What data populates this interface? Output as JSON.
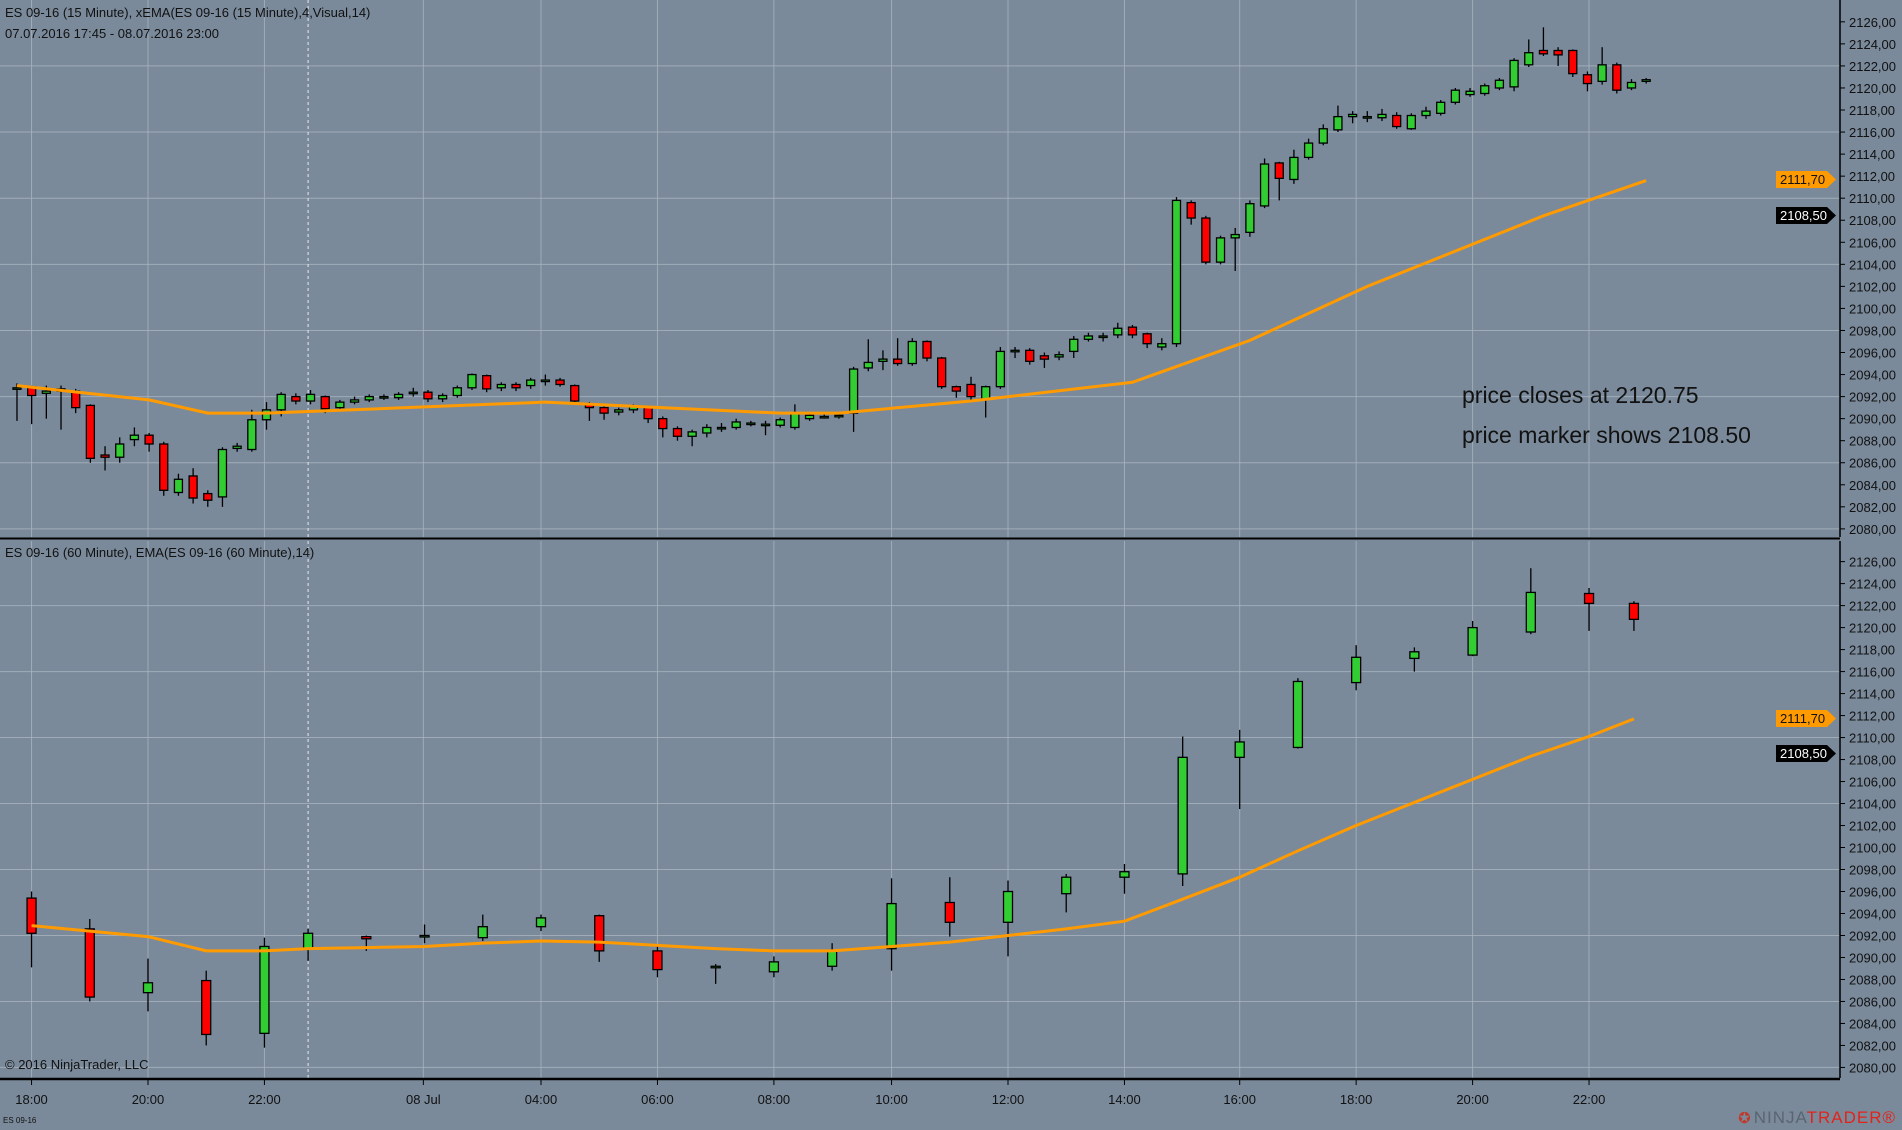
{
  "top_pane": {
    "title": "ES 09-16 (15 Minute), xEMA(ES 09-16 (15 Minute),4,Visual,14)",
    "range": "07.07.2016 17:45 - 08.07.2016 23:00",
    "ema_marker": "2111,70",
    "price_marker": "2108,50"
  },
  "bottom_pane": {
    "title": "ES 09-16 (60 Minute), EMA(ES 09-16 (60 Minute),14)",
    "ema_marker": "2111,70",
    "price_marker": "2108,50"
  },
  "annotations": {
    "line1": "price closes at 2120.75",
    "line2": "price marker shows 2108.50"
  },
  "footer": {
    "copyright": "© 2016 NinjaTrader, LLC",
    "instrument": "ES 09-16",
    "logo_ninja": "NINJA",
    "logo_trader": "TRADER®"
  },
  "colors": {
    "background": "#7a8a9b",
    "up": "#32cd32",
    "down": "#ff0000",
    "ema": "#ff9a00",
    "grid": "#a9b4bf"
  },
  "chart_data": [
    {
      "type": "candlestick",
      "title": "ES 09-16 (15 Minute)",
      "ylim": [
        2079,
        2127
      ],
      "yticks": [
        "2126,00",
        "2124,00",
        "2122,00",
        "2120,00",
        "2118,00",
        "2116,00",
        "2114,00",
        "2112,00",
        "2110,00",
        "2108,00",
        "2106,00",
        "2104,00",
        "2102,00",
        "2100,00",
        "2098,00",
        "2096,00",
        "2094,00",
        "2092,00",
        "2090,00",
        "2088,00",
        "2086,00",
        "2084,00",
        "2082,00",
        "2080,00"
      ],
      "ohlc": [
        [
          2092.8,
          2093.2,
          2089.8,
          2092.8
        ],
        [
          2092.9,
          2093.0,
          2089.5,
          2092.1
        ],
        [
          2092.3,
          2093.0,
          2090.0,
          2092.5
        ],
        [
          2092.7,
          2093.0,
          2089.0,
          2092.5
        ],
        [
          2092.5,
          2092.7,
          2090.5,
          2091.0
        ],
        [
          2091.2,
          2091.3,
          2086.0,
          2086.4
        ],
        [
          2086.7,
          2087.5,
          2085.3,
          2086.5
        ],
        [
          2086.5,
          2088.3,
          2086.0,
          2087.7
        ],
        [
          2088.1,
          2089.2,
          2087.5,
          2088.5
        ],
        [
          2088.5,
          2088.7,
          2087.0,
          2087.7
        ],
        [
          2087.7,
          2087.9,
          2083.0,
          2083.5
        ],
        [
          2083.3,
          2085.0,
          2083.0,
          2084.5
        ],
        [
          2084.8,
          2085.5,
          2082.3,
          2082.8
        ],
        [
          2083.2,
          2083.5,
          2082.0,
          2082.6
        ],
        [
          2082.9,
          2087.4,
          2082.0,
          2087.2
        ],
        [
          2087.3,
          2087.8,
          2087.0,
          2087.5
        ],
        [
          2087.2,
          2090.8,
          2087.0,
          2089.9
        ],
        [
          2089.9,
          2091.5,
          2089.0,
          2090.8
        ],
        [
          2090.8,
          2092.4,
          2090.2,
          2092.2
        ],
        [
          2092.0,
          2092.3,
          2091.3,
          2091.6
        ],
        [
          2091.6,
          2092.6,
          2091.3,
          2092.2
        ],
        [
          2092.0,
          2092.1,
          2090.5,
          2090.9
        ],
        [
          2091.0,
          2091.7,
          2090.7,
          2091.5
        ],
        [
          2091.5,
          2092.0,
          2091.3,
          2091.7
        ],
        [
          2091.7,
          2092.2,
          2091.5,
          2092.0
        ],
        [
          2091.9,
          2092.2,
          2091.7,
          2092.0
        ],
        [
          2091.9,
          2092.4,
          2091.7,
          2092.2
        ],
        [
          2092.3,
          2092.8,
          2092.0,
          2092.4
        ],
        [
          2092.4,
          2092.6,
          2091.5,
          2091.8
        ],
        [
          2091.8,
          2092.3,
          2091.5,
          2092.1
        ],
        [
          2092.1,
          2093.0,
          2091.9,
          2092.8
        ],
        [
          2092.8,
          2094.1,
          2092.6,
          2094.0
        ],
        [
          2093.9,
          2094.0,
          2092.4,
          2092.7
        ],
        [
          2092.8,
          2093.3,
          2092.5,
          2093.1
        ],
        [
          2093.1,
          2093.3,
          2092.5,
          2092.8
        ],
        [
          2093.0,
          2093.7,
          2092.7,
          2093.5
        ],
        [
          2093.4,
          2094.0,
          2093.0,
          2093.5
        ],
        [
          2093.5,
          2093.7,
          2092.9,
          2093.1
        ],
        [
          2093.0,
          2093.1,
          2091.4,
          2091.6
        ],
        [
          2091.3,
          2091.5,
          2089.8,
          2091.0
        ],
        [
          2091.0,
          2091.1,
          2089.9,
          2090.5
        ],
        [
          2090.6,
          2091.0,
          2090.3,
          2090.8
        ],
        [
          2090.8,
          2091.3,
          2090.5,
          2091.1
        ],
        [
          2091.0,
          2091.2,
          2089.6,
          2090.0
        ],
        [
          2090.0,
          2090.2,
          2088.3,
          2089.1
        ],
        [
          2089.1,
          2089.3,
          2088.0,
          2088.4
        ],
        [
          2088.4,
          2089.0,
          2087.5,
          2088.8
        ],
        [
          2088.7,
          2089.5,
          2088.3,
          2089.2
        ],
        [
          2089.2,
          2089.6,
          2088.8,
          2089.2
        ],
        [
          2089.2,
          2090.0,
          2089.0,
          2089.7
        ],
        [
          2089.6,
          2089.8,
          2089.3,
          2089.6
        ],
        [
          2089.5,
          2089.8,
          2088.5,
          2089.5
        ],
        [
          2089.4,
          2090.1,
          2089.2,
          2089.9
        ],
        [
          2089.2,
          2091.3,
          2089.0,
          2090.5
        ],
        [
          2090.0,
          2090.6,
          2089.8,
          2090.3
        ],
        [
          2090.2,
          2090.5,
          2090.0,
          2090.2
        ],
        [
          2090.3,
          2090.6,
          2090.0,
          2090.3
        ],
        [
          2090.5,
          2094.7,
          2088.8,
          2094.5
        ],
        [
          2094.6,
          2097.2,
          2094.3,
          2095.1
        ],
        [
          2095.2,
          2096.2,
          2094.4,
          2095.4
        ],
        [
          2095.4,
          2097.3,
          2094.8,
          2095.0
        ],
        [
          2095.0,
          2097.3,
          2094.8,
          2097.0
        ],
        [
          2097.0,
          2097.1,
          2095.2,
          2095.5
        ],
        [
          2095.5,
          2095.6,
          2092.7,
          2092.9
        ],
        [
          2092.9,
          2093.0,
          2091.9,
          2092.5
        ],
        [
          2093.1,
          2093.8,
          2091.5,
          2092.0
        ],
        [
          2091.8,
          2093.0,
          2090.1,
          2092.9
        ],
        [
          2092.9,
          2096.5,
          2092.7,
          2096.1
        ],
        [
          2096.1,
          2096.5,
          2095.5,
          2096.2
        ],
        [
          2096.2,
          2096.4,
          2094.9,
          2095.2
        ],
        [
          2095.7,
          2096.0,
          2094.6,
          2095.4
        ],
        [
          2095.6,
          2096.1,
          2095.3,
          2095.8
        ],
        [
          2096.1,
          2097.5,
          2095.5,
          2097.2
        ],
        [
          2097.2,
          2097.8,
          2097.0,
          2097.5
        ],
        [
          2097.4,
          2097.8,
          2097.0,
          2097.5
        ],
        [
          2097.6,
          2098.7,
          2097.3,
          2098.2
        ],
        [
          2098.3,
          2098.5,
          2097.3,
          2097.6
        ],
        [
          2097.7,
          2097.8,
          2096.4,
          2096.8
        ],
        [
          2096.5,
          2097.3,
          2096.2,
          2096.8
        ],
        [
          2096.8,
          2110.1,
          2096.5,
          2109.8
        ],
        [
          2109.6,
          2109.8,
          2107.6,
          2108.2
        ],
        [
          2108.2,
          2108.4,
          2104.0,
          2104.2
        ],
        [
          2104.2,
          2106.6,
          2104.0,
          2106.4
        ],
        [
          2106.4,
          2107.3,
          2103.4,
          2106.7
        ],
        [
          2106.9,
          2109.8,
          2106.5,
          2109.5
        ],
        [
          2109.3,
          2113.6,
          2109.1,
          2113.1
        ],
        [
          2113.2,
          2113.3,
          2109.8,
          2111.8
        ],
        [
          2111.7,
          2114.4,
          2111.3,
          2113.7
        ],
        [
          2113.7,
          2115.4,
          2113.5,
          2115.0
        ],
        [
          2115.0,
          2116.7,
          2114.8,
          2116.3
        ],
        [
          2116.2,
          2118.4,
          2116.0,
          2117.4
        ],
        [
          2117.4,
          2117.9,
          2116.8,
          2117.6
        ],
        [
          2117.3,
          2117.9,
          2116.9,
          2117.4
        ],
        [
          2117.3,
          2118.1,
          2117.0,
          2117.6
        ],
        [
          2117.5,
          2117.8,
          2116.3,
          2116.5
        ],
        [
          2116.3,
          2117.7,
          2116.2,
          2117.5
        ],
        [
          2117.5,
          2118.3,
          2117.2,
          2117.9
        ],
        [
          2117.7,
          2118.9,
          2117.5,
          2118.7
        ],
        [
          2118.7,
          2120.0,
          2118.5,
          2119.8
        ],
        [
          2119.4,
          2120.0,
          2119.2,
          2119.7
        ],
        [
          2119.5,
          2120.4,
          2119.3,
          2120.2
        ],
        [
          2120.0,
          2120.9,
          2119.8,
          2120.7
        ],
        [
          2120.1,
          2122.7,
          2119.7,
          2122.5
        ],
        [
          2122.1,
          2124.4,
          2121.9,
          2123.2
        ],
        [
          2123.4,
          2125.5,
          2122.9,
          2123.1
        ],
        [
          2123.4,
          2123.7,
          2122.0,
          2123.0
        ],
        [
          2123.4,
          2123.5,
          2121.0,
          2121.3
        ],
        [
          2121.2,
          2121.5,
          2119.7,
          2120.4
        ],
        [
          2120.6,
          2123.7,
          2120.3,
          2122.1
        ],
        [
          2122.1,
          2122.3,
          2119.5,
          2119.8
        ],
        [
          2120.0,
          2120.8,
          2119.8,
          2120.5
        ],
        [
          2120.6,
          2120.9,
          2120.4,
          2120.75
        ]
      ],
      "ema_anchors": [
        [
          0,
          2093.0
        ],
        [
          9,
          2091.7
        ],
        [
          13,
          2090.5
        ],
        [
          17,
          2090.5
        ],
        [
          36,
          2091.5
        ],
        [
          52,
          2090.5
        ],
        [
          56,
          2090.5
        ],
        [
          65,
          2091.6
        ],
        [
          76,
          2093.3
        ],
        [
          84,
          2097.1
        ],
        [
          92,
          2102.0
        ],
        [
          104,
          2108.4
        ],
        [
          111,
          2111.6
        ]
      ],
      "ema_last": 2111.7,
      "price_marker": 2108.5
    },
    {
      "type": "candlestick",
      "title": "ES 09-16 (60 Minute)",
      "ylim": [
        2079,
        2127
      ],
      "yticks": [
        "2126,00",
        "2124,00",
        "2122,00",
        "2120,00",
        "2118,00",
        "2116,00",
        "2114,00",
        "2112,00",
        "2110,00",
        "2108,00",
        "2106,00",
        "2104,00",
        "2102,00",
        "2100,00",
        "2098,00",
        "2096,00",
        "2094,00",
        "2092,00",
        "2090,00",
        "2088,00",
        "2086,00",
        "2084,00",
        "2082,00",
        "2080,00"
      ],
      "ohlc": [
        [
          2095.4,
          2096.0,
          2089.1,
          2092.2
        ],
        [
          2092.6,
          2093.5,
          2086.0,
          2086.4
        ],
        [
          2086.8,
          2089.9,
          2085.1,
          2087.7
        ],
        [
          2087.9,
          2088.8,
          2082.0,
          2083.0
        ],
        [
          2083.1,
          2091.8,
          2081.8,
          2091.0
        ],
        [
          2090.8,
          2092.6,
          2089.7,
          2092.2
        ],
        [
          2091.9,
          2092.0,
          2090.6,
          2091.7
        ],
        [
          2092.0,
          2093.0,
          2091.3,
          2092.0
        ],
        [
          2091.8,
          2093.9,
          2091.5,
          2092.8
        ],
        [
          2092.8,
          2093.9,
          2092.4,
          2093.6
        ],
        [
          2093.8,
          2093.9,
          2089.6,
          2090.6
        ],
        [
          2090.6,
          2091.0,
          2088.2,
          2088.9
        ],
        [
          2089.2,
          2089.4,
          2087.6,
          2089.2
        ],
        [
          2088.7,
          2090.1,
          2088.2,
          2089.6
        ],
        [
          2089.2,
          2091.3,
          2088.8,
          2090.6
        ],
        [
          2090.8,
          2097.2,
          2088.8,
          2094.9
        ],
        [
          2095.0,
          2097.3,
          2091.9,
          2093.2
        ],
        [
          2093.2,
          2097.0,
          2090.1,
          2096.0
        ],
        [
          2095.8,
          2097.6,
          2094.1,
          2097.3
        ],
        [
          2097.3,
          2098.5,
          2095.8,
          2097.8
        ],
        [
          2097.6,
          2110.1,
          2096.5,
          2108.2
        ],
        [
          2108.2,
          2110.7,
          2103.5,
          2109.6
        ],
        [
          2109.1,
          2115.4,
          2109.0,
          2115.1
        ],
        [
          2115.0,
          2118.4,
          2114.3,
          2117.3
        ],
        [
          2117.2,
          2118.2,
          2116.0,
          2117.8
        ],
        [
          2117.5,
          2120.6,
          2117.4,
          2120.0
        ],
        [
          2119.6,
          2125.4,
          2119.4,
          2123.2
        ],
        [
          2123.1,
          2123.6,
          2119.7,
          2122.2
        ],
        [
          2122.2,
          2122.4,
          2119.7,
          2120.75
        ]
      ],
      "ema": [
        2092.9,
        2092.4,
        2091.9,
        2090.6,
        2090.6,
        2090.8,
        2090.9,
        2091.0,
        2091.3,
        2091.5,
        2091.4,
        2091.1,
        2090.8,
        2090.6,
        2090.6,
        2091.0,
        2091.4,
        2092.0,
        2092.6,
        2093.3,
        2095.3,
        2097.3,
        2099.7,
        2102.0,
        2104.1,
        2106.2,
        2108.3,
        2110.1,
        2111.7
      ],
      "ema_last": 2111.7,
      "price_marker": 2108.5
    }
  ],
  "xaxis": {
    "labels": [
      "18:00",
      "20:00",
      "22:00",
      "08 Jul",
      "04:00",
      "06:00",
      "08:00",
      "10:00",
      "12:00",
      "14:00",
      "16:00",
      "18:00",
      "20:00",
      "22:00"
    ]
  }
}
